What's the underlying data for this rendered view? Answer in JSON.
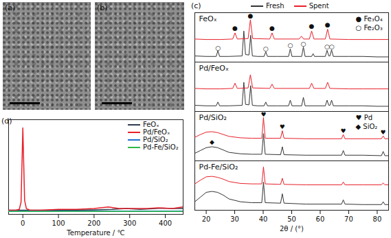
{
  "images": [
    {
      "label": "(a)"
    },
    {
      "label": "(b)"
    }
  ],
  "chart_data": [
    {
      "type": "line",
      "label": "(c)",
      "x_label": "2θ / (°)",
      "xlim": [
        16,
        84
      ],
      "xticks": [
        20,
        30,
        40,
        50,
        60,
        70,
        80
      ],
      "ylim": [
        0,
        105
      ],
      "tick_labels": "x",
      "legend": "top",
      "series": [
        {
          "name": "Fresh",
          "color": "#333333"
        },
        {
          "name": "Spent",
          "color": "#e8202a"
        }
      ],
      "subplots": [
        {
          "title": "FeOₓ",
          "series": [
            {
              "x": [
                16,
                20,
                23.5,
                24.1,
                24.7,
                28,
                32.6,
                33.2,
                33.8,
                35.0,
                35.6,
                36.2,
                38,
                40.3,
                40.9,
                41.5,
                45,
                48.9,
                49.5,
                50.1,
                53.5,
                54.1,
                54.7,
                57.0,
                57.5,
                58.0,
                61.8,
                62.4,
                63.0,
                63.4,
                64.0,
                64.6,
                70,
                75,
                80,
                84
              ],
              "values": [
                13,
                12,
                12,
                24,
                12,
                12,
                13,
                66,
                16,
                15,
                57,
                13,
                12,
                12,
                22,
                12,
                12,
                12,
                28,
                12,
                12,
                32,
                12,
                12,
                18,
                12,
                12,
                25,
                13,
                13,
                26,
                12,
                12,
                12,
                11,
                11
              ]
            },
            {
              "x": [
                16,
                20,
                25,
                29.3,
                30.1,
                30.9,
                34.7,
                35.5,
                36.3,
                42.3,
                43.1,
                43.9,
                52.6,
                53.4,
                54.2,
                56.2,
                57.0,
                57.8,
                61.8,
                62.6,
                63.4,
                70,
                75,
                80,
                84
              ],
              "values": [
                49,
                48,
                48,
                49,
                62,
                49,
                50,
                90,
                50,
                49,
                62,
                49,
                49,
                55,
                49,
                49,
                66,
                49,
                49,
                70,
                49,
                48,
                48,
                48,
                48
              ]
            }
          ],
          "annotations": [
            {
              "text": "●",
              "x": 30.1,
              "y": 72
            },
            {
              "text": "●",
              "x": 35.5,
              "y": 99
            },
            {
              "text": "●",
              "x": 43.1,
              "y": 72
            },
            {
              "text": "●",
              "x": 57.0,
              "y": 76
            },
            {
              "text": "●",
              "x": 62.6,
              "y": 80
            },
            {
              "text": "○",
              "x": 24.1,
              "y": 30
            },
            {
              "text": "○",
              "x": 40.9,
              "y": 29
            },
            {
              "text": "○",
              "x": 49.5,
              "y": 35
            },
            {
              "text": "○",
              "x": 54.1,
              "y": 39
            },
            {
              "text": "○",
              "x": 62.4,
              "y": 33
            },
            {
              "text": "○",
              "x": 64.0,
              "y": 33
            }
          ],
          "phase_legend": [
            {
              "symbol": "●",
              "label": "Fe₃O₄"
            },
            {
              "symbol": "○",
              "label": "Fe₂O₃"
            }
          ]
        },
        {
          "title": "Pd/FeOₓ",
          "series": [
            {
              "x": [
                16,
                20,
                23.5,
                24.1,
                24.7,
                28,
                32.6,
                33.2,
                33.8,
                35.0,
                35.6,
                36.2,
                38,
                40.3,
                40.9,
                41.5,
                45,
                48.9,
                49.5,
                50.1,
                53.5,
                54.1,
                54.7,
                61.8,
                62.4,
                63.0,
                63.4,
                64.0,
                64.6,
                70,
                75,
                80,
                84
              ],
              "values": [
                13,
                12,
                12,
                20,
                12,
                12,
                13,
                62,
                15,
                14,
                55,
                13,
                12,
                12,
                20,
                12,
                12,
                12,
                24,
                12,
                12,
                30,
                12,
                12,
                24,
                13,
                13,
                24,
                12,
                12,
                12,
                11,
                11
              ]
            },
            {
              "x": [
                16,
                20,
                25,
                29.3,
                30.1,
                30.9,
                34.7,
                35.5,
                36.3,
                42.3,
                43.1,
                43.9,
                56.2,
                57.0,
                57.8,
                61.8,
                62.6,
                63.4,
                70,
                75,
                80,
                84
              ],
              "values": [
                49,
                48,
                48,
                49,
                60,
                49,
                50,
                78,
                50,
                49,
                58,
                49,
                49,
                60,
                49,
                49,
                62,
                49,
                48,
                48,
                48,
                48
              ]
            }
          ]
        },
        {
          "title": "Pd/SiO₂",
          "series": [
            {
              "x": [
                16,
                18,
                20,
                22,
                24,
                26,
                28,
                32,
                36,
                39.5,
                40.1,
                40.7,
                46.1,
                46.7,
                47.3,
                55,
                60,
                67.5,
                68.1,
                68.7,
                75,
                81.5,
                82.1,
                82.7,
                84
              ],
              "values": [
                16,
                22,
                28,
                30,
                28,
                23,
                18,
                15,
                14,
                14,
                58,
                14,
                13,
                30,
                13,
                12,
                12,
                12,
                22,
                12,
                12,
                11,
                20,
                11,
                11
              ]
            },
            {
              "x": [
                16,
                18,
                20,
                22,
                24,
                26,
                28,
                32,
                36,
                39.5,
                40.1,
                40.7,
                46.1,
                46.7,
                47.3,
                55,
                60,
                67.5,
                68.1,
                68.7,
                75,
                81.5,
                82.1,
                82.7,
                84
              ],
              "values": [
                50,
                56,
                61,
                62,
                60,
                56,
                52,
                49,
                48,
                48,
                92,
                48,
                48,
                64,
                48,
                47,
                47,
                47,
                56,
                47,
                47,
                47,
                53,
                47,
                47
              ]
            }
          ],
          "annotations": [
            {
              "text": "♥",
              "x": 40.1,
              "y": 99
            },
            {
              "text": "♥",
              "x": 46.7,
              "y": 72
            },
            {
              "text": "♥",
              "x": 68.1,
              "y": 64
            },
            {
              "text": "♥",
              "x": 82.1,
              "y": 61
            },
            {
              "text": "◆",
              "x": 22,
              "y": 40
            }
          ],
          "phase_legend": [
            {
              "symbol": "♥",
              "label": "Pd"
            },
            {
              "symbol": "◆",
              "label": "SiO₂"
            }
          ]
        },
        {
          "title": "Pd-Fe/SiO₂",
          "series": [
            {
              "x": [
                16,
                18,
                20,
                22,
                24,
                26,
                28,
                32,
                36,
                39.5,
                40.1,
                40.7,
                46.1,
                46.7,
                47.3,
                55,
                60,
                67.5,
                68.1,
                68.7,
                75,
                81.5,
                82.1,
                82.7,
                84
              ],
              "values": [
                18,
                28,
                38,
                40,
                38,
                32,
                24,
                18,
                16,
                16,
                60,
                16,
                15,
                35,
                15,
                13,
                13,
                13,
                22,
                13,
                12,
                12,
                18,
                12,
                12
              ]
            },
            {
              "x": [
                16,
                18,
                20,
                22,
                24,
                26,
                28,
                32,
                36,
                39.5,
                40.1,
                40.7,
                46.1,
                46.7,
                47.3,
                55,
                60,
                67.5,
                68.1,
                68.7,
                75,
                81.5,
                82.1,
                82.7,
                84
              ],
              "values": [
                56,
                64,
                71,
                72,
                70,
                66,
                61,
                57,
                56,
                56,
                92,
                56,
                55,
                68,
                55,
                54,
                54,
                54,
                60,
                54,
                54,
                54,
                58,
                54,
                54
              ]
            }
          ]
        }
      ]
    },
    {
      "type": "line",
      "label": "(d)",
      "x_label": "Temperature / ℃",
      "xlim": [
        -40,
        450
      ],
      "xticks": [
        0,
        100,
        200,
        300,
        400
      ],
      "ylim": [
        -5,
        110
      ],
      "tick_labels": "x",
      "legend": "upper right",
      "series": [
        {
          "name": "FeOₓ",
          "color": "#2f3c4f",
          "x": [
            -40,
            0,
            100,
            200,
            250,
            290,
            330,
            390,
            420,
            450
          ],
          "values": [
            0,
            0,
            0,
            0.5,
            1,
            2,
            1,
            2.5,
            2,
            2
          ]
        },
        {
          "name": "Pd/FeOₓ",
          "color": "#e8202a",
          "x": [
            -40,
            -20,
            -10,
            -5,
            0,
            5,
            10,
            20,
            50,
            100,
            150,
            200,
            240,
            270,
            300,
            350,
            380,
            420,
            450
          ],
          "values": [
            0,
            0,
            1,
            10,
            100,
            12,
            2,
            0,
            0,
            1,
            1,
            2,
            4,
            2,
            2,
            2,
            3,
            2,
            4
          ]
        },
        {
          "name": "Pd/SiO₂",
          "color": "#1f6fd0",
          "x": [
            -40,
            0,
            100,
            200,
            300,
            400,
            450
          ],
          "values": [
            -1,
            -1,
            -1,
            -1,
            -1,
            -1,
            -1
          ]
        },
        {
          "name": "Pd-Fe/SiO₂",
          "color": "#2fb84a",
          "x": [
            -40,
            0,
            100,
            200,
            300,
            400,
            450
          ],
          "values": [
            -1.5,
            -1.5,
            -1.5,
            -1.5,
            -1.5,
            -1.5,
            -1.5
          ]
        }
      ]
    }
  ]
}
